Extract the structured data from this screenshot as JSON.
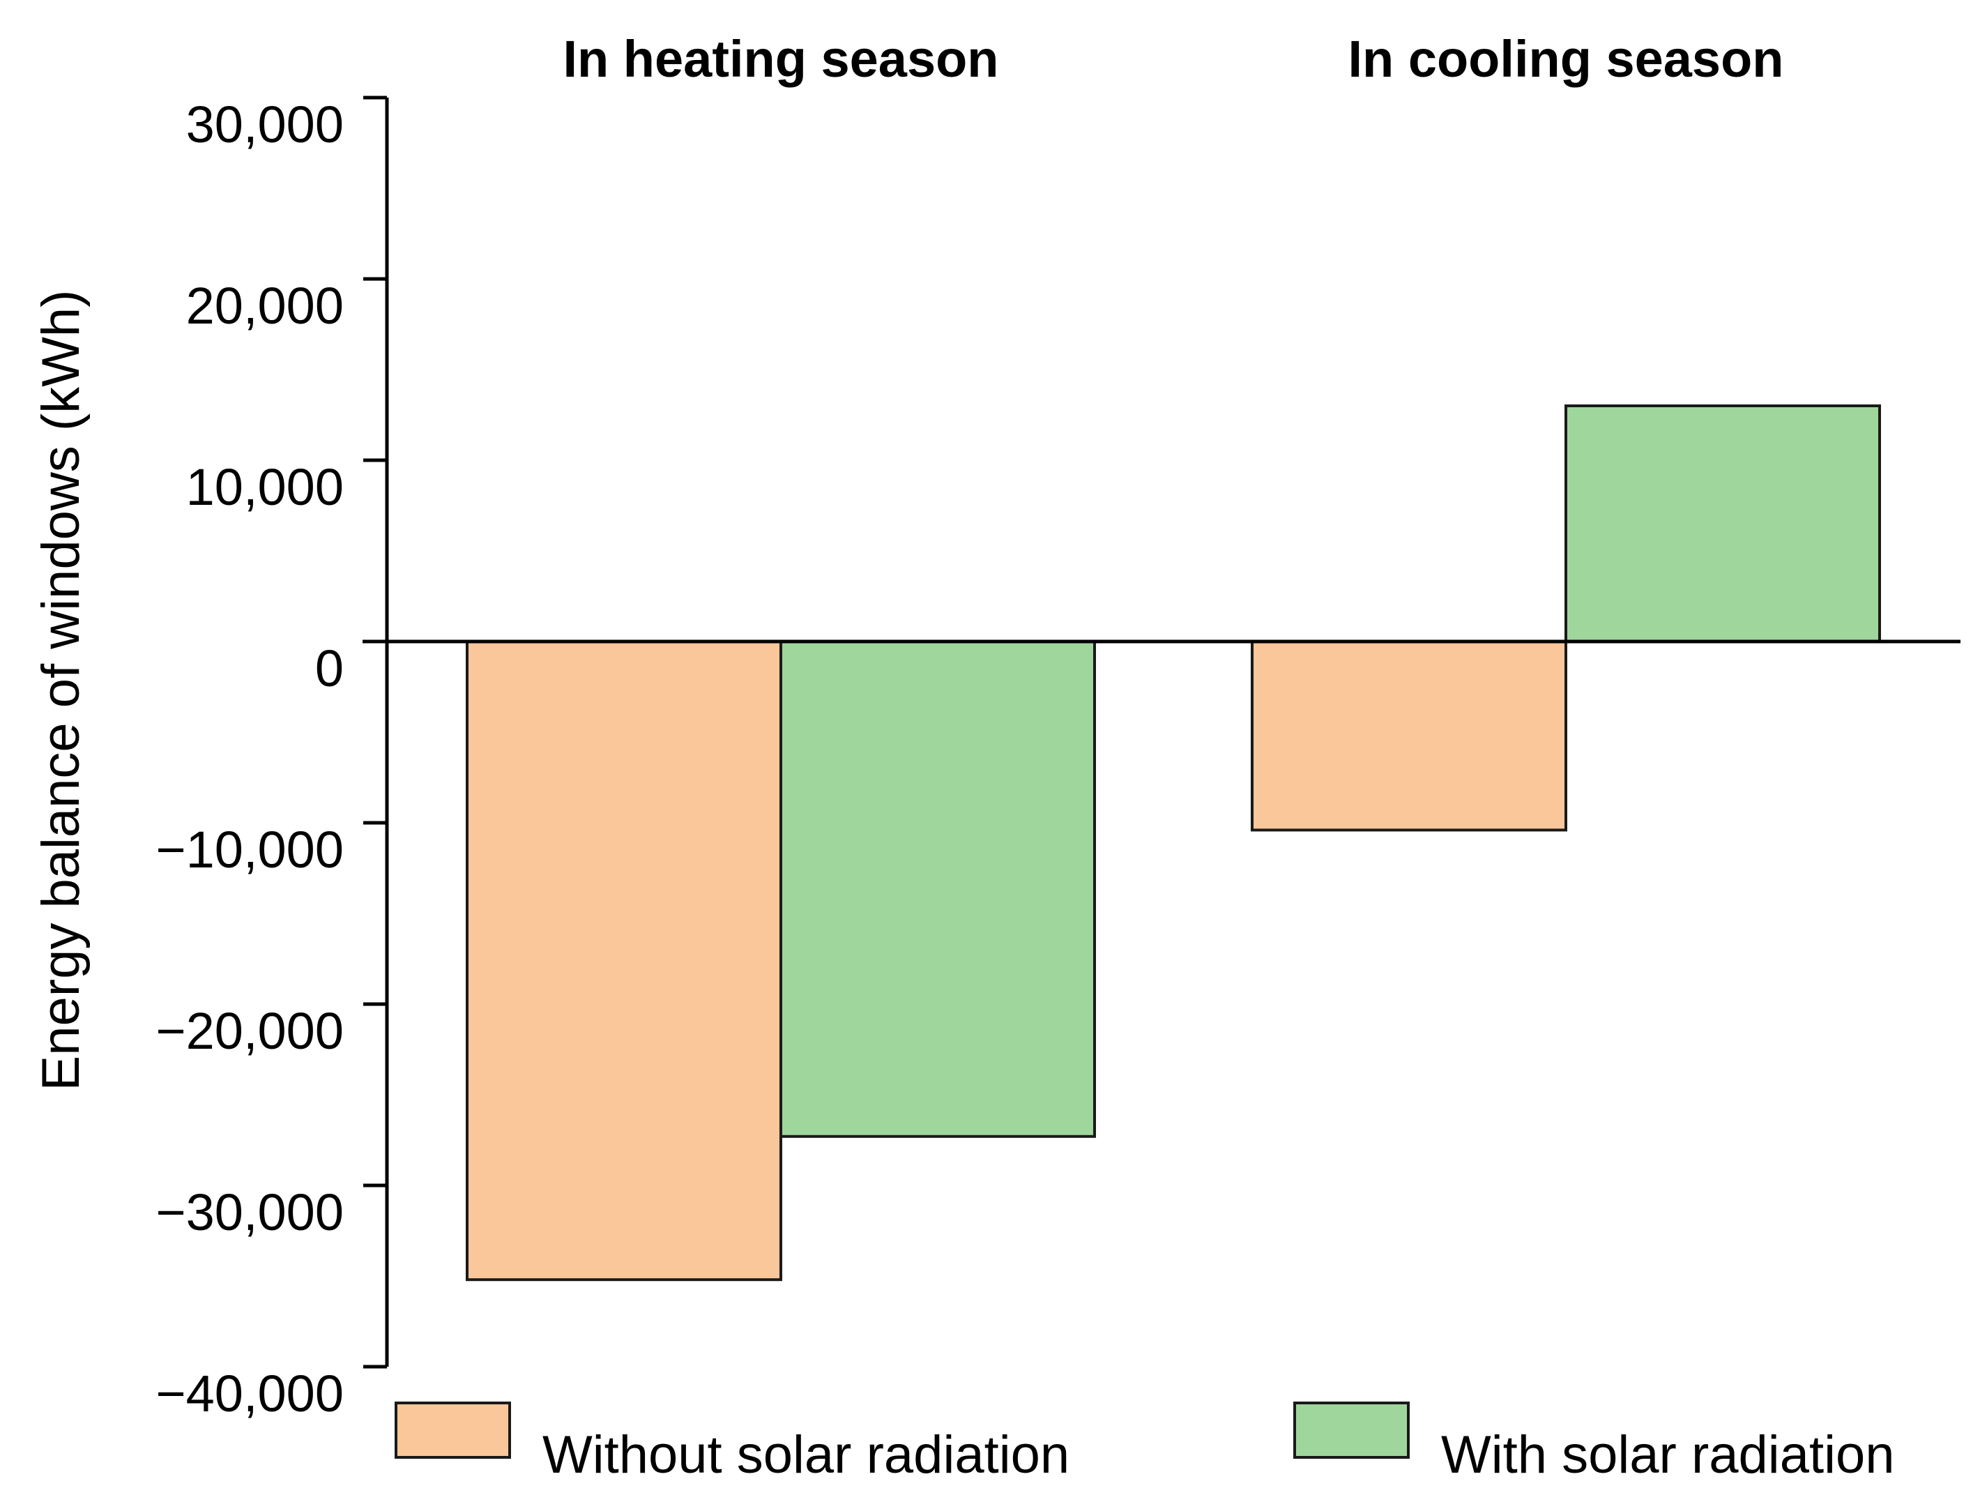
{
  "chart_data": {
    "type": "bar",
    "ylabel": "Energy balance of windows (kWh)",
    "xlabel": "",
    "ylim": [
      -40000,
      30000
    ],
    "yticks": [
      30000,
      20000,
      10000,
      0,
      -10000,
      -20000,
      -30000,
      -40000
    ],
    "ytick_labels": [
      "30,000",
      "20,000",
      "10,000",
      "0",
      "−10,000",
      "−20,000",
      "−30,000",
      "−40,000"
    ],
    "categories": [
      "In heating season",
      "In cooling season"
    ],
    "series": [
      {
        "name": "Without solar radiation",
        "color": "#f9c799",
        "values": [
          -35200,
          -10400
        ]
      },
      {
        "name": "With solar radiation",
        "color": "#9fd69c",
        "values": [
          -27300,
          13000
        ]
      }
    ],
    "legend_position": "bottom"
  }
}
